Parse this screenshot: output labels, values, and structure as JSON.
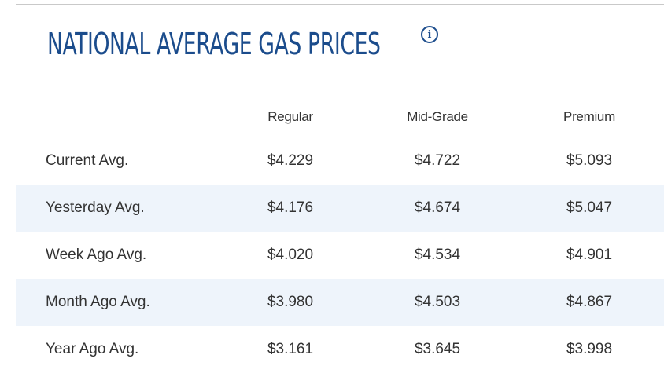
{
  "title": "NATIONAL AVERAGE GAS PRICES",
  "info_icon": "info-icon",
  "table": {
    "headers": [
      "",
      "Regular",
      "Mid-Grade",
      "Premium"
    ],
    "rows": [
      {
        "label": "Current Avg.",
        "regular": "$4.229",
        "mid_grade": "$4.722",
        "premium": "$5.093"
      },
      {
        "label": "Yesterday Avg.",
        "regular": "$4.176",
        "mid_grade": "$4.674",
        "premium": "$5.047"
      },
      {
        "label": "Week Ago Avg.",
        "regular": "$4.020",
        "mid_grade": "$4.534",
        "premium": "$4.901"
      },
      {
        "label": "Month Ago Avg.",
        "regular": "$3.980",
        "mid_grade": "$4.503",
        "premium": "$4.867"
      },
      {
        "label": "Year Ago Avg.",
        "regular": "$3.161",
        "mid_grade": "$3.645",
        "premium": "$3.998"
      }
    ]
  },
  "colors": {
    "title": "#1b4c8c",
    "row_stripe": "#eef4fb",
    "text": "#333333"
  }
}
